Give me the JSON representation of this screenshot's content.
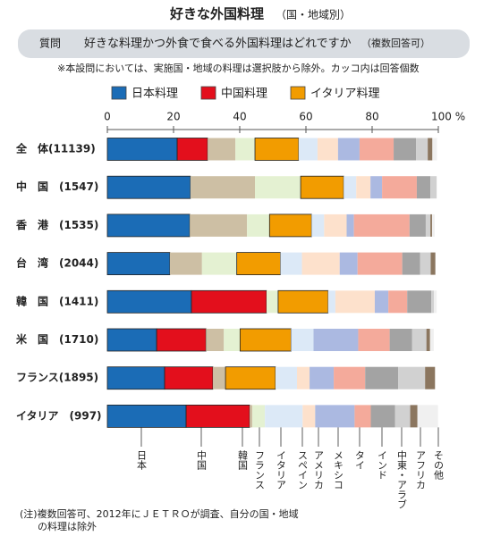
{
  "chart_data": {
    "type": "stacked-hbar",
    "title": "好きな外国料理",
    "subtitle": "（国・地域別）",
    "question_tag": "質問",
    "question": "好きな料理かつ外食で食べる外国料理はどれですか",
    "question_note": "（複数回答可）",
    "note": "※本設問においては、実施国・地域の料理は選択肢から除外。カッコ内は回答個数",
    "footnote": [
      "(注)複数回答可、2012年にＪＥＴＲＯが調査、自分の国・地域",
      "の料理は除外"
    ],
    "categories": [
      "全　体(11139)",
      "中　国　(1547)",
      "香　港　(1535)",
      "台　湾　(2044)",
      "韓　国　(1411)",
      "米　国　(1710)",
      "フランス(1895)",
      "イタリア　(997)"
    ],
    "xlim": [
      0,
      100
    ],
    "xticks": [
      0,
      20,
      40,
      60,
      80,
      {
        "value": 100,
        "label": "100 %"
      }
    ],
    "series": [
      {
        "name": "日本料理",
        "short": "日本",
        "color": "#1b6cb6",
        "legend": true,
        "values": [
          21.1,
          25.1,
          24.9,
          18.9,
          25.4,
          14.9,
          17.3,
          23.8
        ]
      },
      {
        "name": "中国料理",
        "short": "中国",
        "color": "#e30f1c",
        "legend": true,
        "values": [
          9.2,
          0,
          0,
          0,
          22.7,
          14.9,
          14.6,
          19.2
        ]
      },
      {
        "name": "韓国",
        "color": "#cdbfa4",
        "values": [
          8.4,
          19.5,
          17.3,
          9.7,
          0,
          5.4,
          3.8,
          0.8
        ]
      },
      {
        "name": "フランス",
        "color": "#e4f1d2",
        "values": [
          5.9,
          13.8,
          6.8,
          10.5,
          3.5,
          4.9,
          0,
          3.8
        ]
      },
      {
        "name": "イタリア料理",
        "short": "イタリア",
        "color": "#f29c00",
        "legend": true,
        "values": [
          13.2,
          13.0,
          12.7,
          13.2,
          15.1,
          15.4,
          15.1,
          0
        ]
      },
      {
        "name": "スペイン",
        "color": "#dce9f7",
        "values": [
          5.7,
          3.8,
          3.8,
          6.5,
          2.2,
          6.8,
          6.5,
          11.4
        ]
      },
      {
        "name": "アメリカ",
        "color": "#fde1cc",
        "values": [
          6.2,
          4.3,
          6.8,
          11.4,
          11.9,
          0,
          3.8,
          3.8
        ]
      },
      {
        "name": "メキシコ",
        "color": "#abb9e1",
        "values": [
          6.5,
          3.5,
          2.2,
          5.4,
          4.1,
          13.5,
          7.3,
          11.9
        ]
      },
      {
        "name": "タイ",
        "color": "#f4aa9b",
        "values": [
          10.3,
          10.5,
          16.8,
          13.5,
          5.7,
          9.5,
          9.5,
          4.9
        ]
      },
      {
        "name": "インド",
        "color": "#a3a3a3",
        "values": [
          6.8,
          4.1,
          4.9,
          5.4,
          7.3,
          6.8,
          10.0,
          7.3
        ]
      },
      {
        "name": "中東・アラブ",
        "color": "#d1d1d1",
        "values": [
          3.5,
          1.9,
          1.4,
          3.2,
          0.8,
          4.3,
          8.1,
          4.6
        ]
      },
      {
        "name": "アフリカ",
        "color": "#8b765f",
        "values": [
          1.4,
          0,
          0.5,
          1.4,
          0,
          1.1,
          3.0,
          2.2
        ]
      },
      {
        "name": "その他",
        "color": "#f0f0f0",
        "values": [
          1.4,
          0,
          0.8,
          0,
          0.8,
          1.1,
          0,
          6.2
        ]
      }
    ]
  }
}
